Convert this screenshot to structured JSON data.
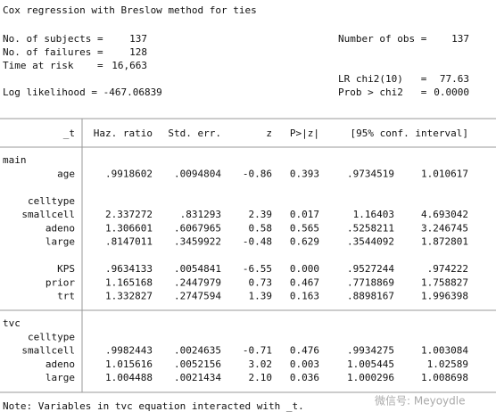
{
  "header": {
    "title": "Cox regression with Breslow method for ties",
    "left": [
      {
        "label": "No. of subjects =",
        "value": "137"
      },
      {
        "label": "No. of failures =",
        "value": "128"
      },
      {
        "label": "Time at risk    =",
        "value": "16,663"
      }
    ],
    "log_likelihood": "Log likelihood = -467.06839",
    "right": [
      {
        "label": "Number of obs =",
        "value": "137"
      },
      {
        "label": "LR chi2(10)   =",
        "value": "77.63"
      },
      {
        "label": "Prob > chi2   =",
        "value": "0.0000"
      }
    ]
  },
  "table": {
    "columns": [
      "_t",
      "Haz. ratio",
      "Std. err.",
      "z",
      "P>|z|",
      "[95% conf. interval]"
    ],
    "sections": [
      {
        "equation": "main",
        "groups": [
          {
            "rows": [
              [
                "age",
                ".9918602",
                ".0094804",
                "-0.86",
                "0.393",
                ".9734519",
                "1.010617"
              ]
            ]
          },
          {
            "label": "celltype",
            "rows": [
              [
                "smallcell",
                "2.337272",
                ".831293",
                "2.39",
                "0.017",
                "1.16403",
                "4.693042"
              ],
              [
                "adeno",
                "1.306601",
                ".6067965",
                "0.58",
                "0.565",
                ".5258211",
                "3.246745"
              ],
              [
                "large",
                ".8147011",
                ".3459922",
                "-0.48",
                "0.629",
                ".3544092",
                "1.872801"
              ]
            ]
          },
          {
            "rows": [
              [
                "KPS",
                ".9634133",
                ".0054841",
                "-6.55",
                "0.000",
                ".9527244",
                ".974222"
              ],
              [
                "prior",
                "1.165168",
                ".2447979",
                "0.73",
                "0.467",
                ".7718869",
                "1.758827"
              ],
              [
                "trt",
                "1.332827",
                ".2747594",
                "1.39",
                "0.163",
                ".8898167",
                "1.996398"
              ]
            ]
          }
        ]
      },
      {
        "equation": "tvc",
        "groups": [
          {
            "label": "celltype",
            "rows": [
              [
                "smallcell",
                ".9982443",
                ".0024635",
                "-0.71",
                "0.476",
                ".9934275",
                "1.003084"
              ],
              [
                "adeno",
                "1.015616",
                ".0052156",
                "3.02",
                "0.003",
                "1.005445",
                "1.02589"
              ],
              [
                "large",
                "1.004488",
                ".0021434",
                "2.10",
                "0.036",
                "1.000296",
                "1.008698"
              ]
            ]
          }
        ]
      }
    ],
    "note": "Note: Variables in tvc equation interacted with _t."
  },
  "watermark": "微信号: Meyoydle"
}
